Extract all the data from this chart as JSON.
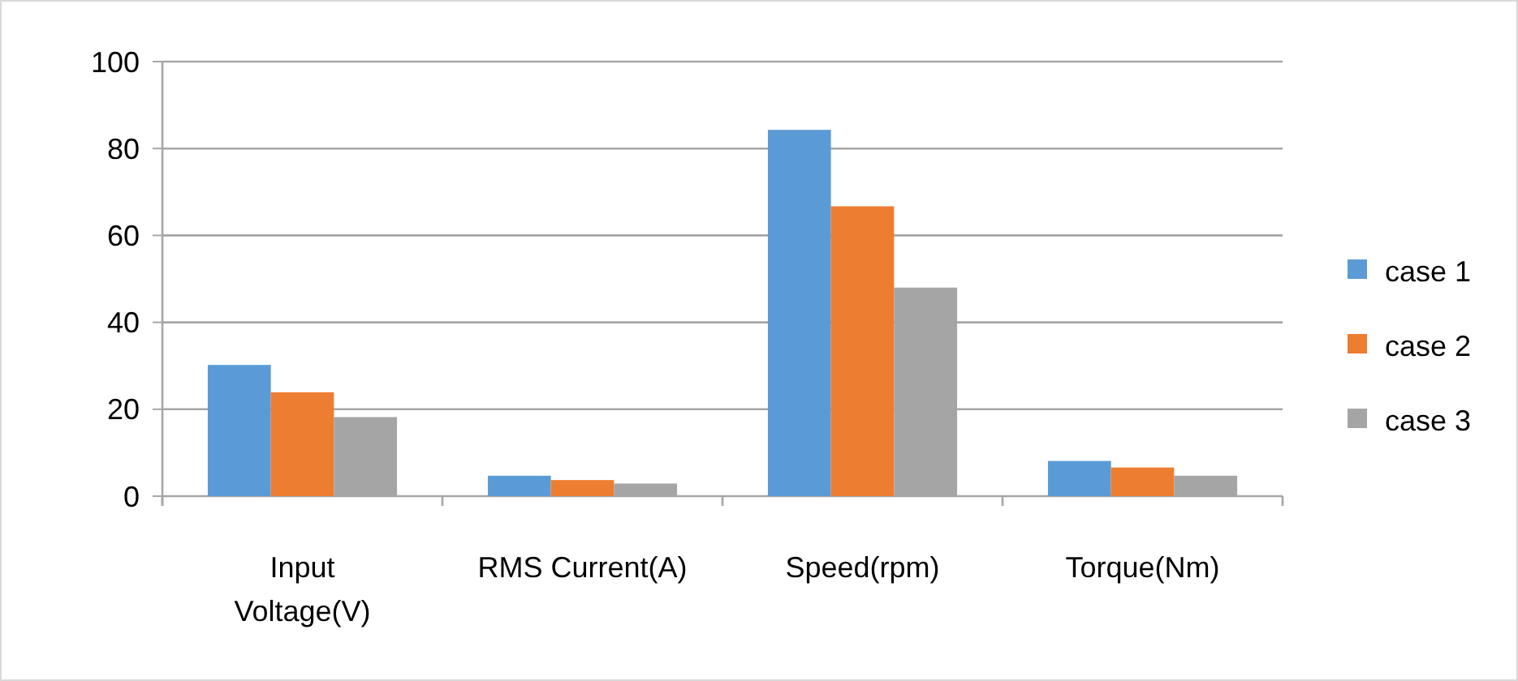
{
  "chart_data": {
    "type": "bar",
    "categories": [
      "Input Voltage(V)",
      "RMS Current(A)",
      "Speed(rpm)",
      "Torque(Nm)"
    ],
    "series": [
      {
        "name": "case 1",
        "color": "#5b9bd5",
        "values": [
          30.2,
          4.7,
          84.3,
          8.1
        ]
      },
      {
        "name": "case 2",
        "color": "#ed7d31",
        "values": [
          23.9,
          3.7,
          66.7,
          6.6
        ]
      },
      {
        "name": "case 3",
        "color": "#a5a5a5",
        "values": [
          18.2,
          2.9,
          48,
          4.7
        ]
      }
    ],
    "ylim": [
      0,
      100
    ],
    "yticks": [
      0,
      20,
      40,
      60,
      80,
      100
    ],
    "grid": "y",
    "legend": "right"
  }
}
